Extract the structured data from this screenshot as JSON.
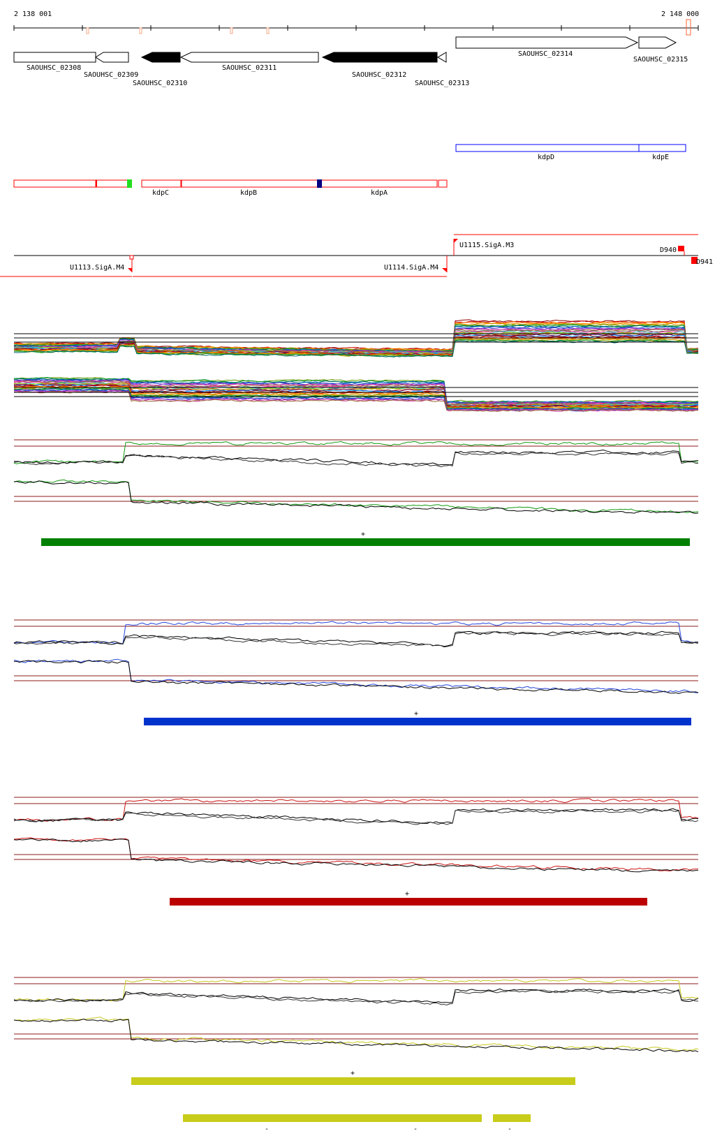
{
  "ruler": {
    "start_label": "2 138 001",
    "end_label": "2 148 000"
  },
  "genes": [
    {
      "id": "SAOUHSC_02308",
      "strand": "none",
      "fill": "white"
    },
    {
      "id": "SAOUHSC_02309",
      "strand": "-",
      "fill": "white"
    },
    {
      "id": "SAOUHSC_02310",
      "strand": "-",
      "fill": "black"
    },
    {
      "id": "SAOUHSC_02311",
      "strand": "-",
      "fill": "white"
    },
    {
      "id": "SAOUHSC_02312",
      "strand": "-",
      "fill": "black"
    },
    {
      "id": "SAOUHSC_02313",
      "strand": "-",
      "fill": "white"
    },
    {
      "id": "SAOUHSC_02314",
      "strand": "+",
      "fill": "white"
    },
    {
      "id": "SAOUHSC_02315",
      "strand": "+",
      "fill": "white"
    }
  ],
  "operons": {
    "plus": [
      {
        "name": "kdpD"
      },
      {
        "name": "kdpE"
      }
    ],
    "minus": [
      {
        "name": "kdpC"
      },
      {
        "name": "kdpB"
      },
      {
        "name": "kdpA"
      }
    ]
  },
  "promoters": [
    {
      "name": "U1113.SigA.M4"
    },
    {
      "name": "U1114.SigA.M4"
    },
    {
      "name": "U1115.SigA.M3"
    }
  ],
  "terminators": [
    {
      "name": "D940"
    },
    {
      "name": "D941"
    }
  ],
  "segment_panels": [
    {
      "color": "#008000",
      "strand_label": "+"
    },
    {
      "color": "#0033cc",
      "strand_label": "+"
    },
    {
      "color": "#bb0000",
      "strand_label": "+"
    },
    {
      "color": "#c8cc1a",
      "strand_label": "+"
    }
  ],
  "extra_segments": [
    {
      "color": "#c8cc1a",
      "strand_label": "-"
    },
    {
      "color": "#c8cc1a",
      "strand_label": "-"
    },
    {
      "color": "#c8cc1a",
      "strand_label": "-"
    }
  ],
  "colors": {
    "promoter": "#ff0000",
    "operon_minus": "#ff0000",
    "operon_plus": "#0000ff",
    "threshold": "#8b1a1a"
  }
}
